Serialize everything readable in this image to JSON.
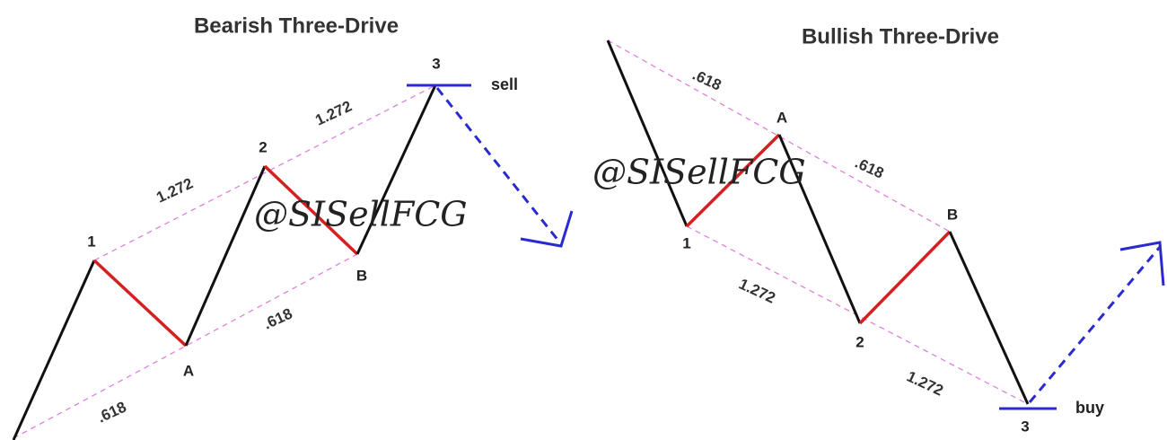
{
  "diagrams": [
    {
      "title": "Bearish Three-Drive",
      "points": [
        "1",
        "A",
        "2",
        "B",
        "3"
      ],
      "ratios": [
        ".618",
        "1.272",
        ".618",
        "1.272"
      ],
      "action": "sell"
    },
    {
      "title": "Bullish Three-Drive",
      "points": [
        "1",
        "A",
        "2",
        "B",
        "3"
      ],
      "ratios": [
        ".618",
        ".618",
        "1.272",
        "1.272"
      ],
      "action": "buy"
    }
  ],
  "watermark": "@SISellFCG"
}
